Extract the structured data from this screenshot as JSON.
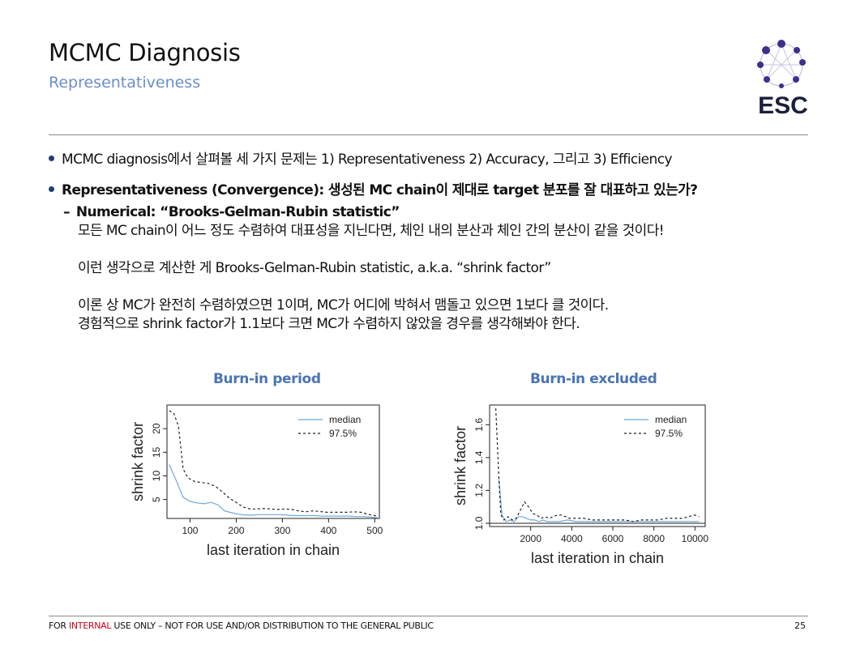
{
  "header": {
    "title": "MCMC Diagnosis",
    "subtitle": "Representativeness",
    "logo_text": "ESC"
  },
  "bullets": {
    "item1": "MCMC diagnosis에서 살펴볼 세 가지 문제는 1) Representativeness 2) Accuracy, 그리고 3) Efficiency",
    "item2": "Representativeness (Convergence): 생성된 MC chain이 제대로 target 분포를 잘 대표하고 있는가?",
    "sub_dash": "–",
    "sub_head": "Numerical: “Brooks-Gelman-Rubin statistic”",
    "sub_lines": [
      "모든 MC chain이 어느 정도 수렴하여 대표성을 지닌다면, 체인 내의 분산과 체인 간의 분산이 같을 것이다!",
      "",
      "이런 생각으로 계산한 게 Brooks-Gelman-Rubin statistic, a.k.a. “shrink factor”",
      "",
      "이론 상 MC가 완전히 수렴하였으면 1이며, MC가 어디에 박혀서 맴돌고 있으면 1보다 클 것이다.",
      "경험적으로 shrink factor가 1.1보다 크면 MC가 수렴하지 않았을 경우를 생각해봐야 한다."
    ]
  },
  "chart_data": [
    {
      "type": "line",
      "heading": "Burn-in period",
      "xlabel": "last iteration in chain",
      "ylabel": "shrink factor",
      "xlim": [
        50,
        510
      ],
      "ylim": [
        1,
        25
      ],
      "xticks": [
        100,
        200,
        300,
        400,
        500
      ],
      "yticks": [
        5,
        10,
        15,
        20
      ],
      "legend": "top-right",
      "series": [
        {
          "name": "median",
          "style": "solid",
          "color": "#6fa8dc",
          "x": [
            55,
            70,
            85,
            100,
            115,
            130,
            145,
            160,
            175,
            190,
            205,
            220,
            235,
            250,
            265,
            280,
            295,
            310,
            325,
            340,
            355,
            370,
            385,
            400,
            415,
            430,
            445,
            460,
            475,
            490,
            505
          ],
          "y": [
            12.4,
            9.0,
            5.5,
            4.6,
            4.3,
            4.1,
            4.4,
            3.9,
            2.6,
            2.2,
            1.9,
            1.7,
            1.7,
            1.8,
            1.8,
            1.8,
            1.8,
            1.7,
            1.6,
            1.6,
            1.6,
            1.6,
            1.5,
            1.5,
            1.5,
            1.5,
            1.5,
            1.4,
            1.4,
            1.3,
            1.2
          ]
        },
        {
          "name": "97.5%",
          "style": "dashed",
          "color": "#222222",
          "x": [
            55,
            65,
            75,
            85,
            95,
            110,
            125,
            140,
            155,
            170,
            185,
            200,
            215,
            230,
            245,
            260,
            275,
            290,
            305,
            320,
            335,
            350,
            365,
            380,
            395,
            410,
            425,
            440,
            455,
            470,
            485,
            500,
            505
          ],
          "y": [
            23.8,
            23.2,
            20.5,
            11.5,
            9.6,
            8.8,
            8.6,
            8.4,
            7.8,
            6.6,
            5.3,
            4.4,
            3.4,
            3.0,
            3.0,
            3.1,
            3.0,
            2.9,
            3.0,
            2.9,
            2.6,
            2.4,
            2.6,
            2.5,
            2.3,
            2.3,
            2.3,
            2.3,
            2.4,
            2.3,
            1.9,
            1.6,
            1.5
          ]
        }
      ]
    },
    {
      "type": "line",
      "heading": "Burn-in excluded",
      "xlabel": "last iteration in chain",
      "ylabel": "shrink factor",
      "xlim": [
        0,
        10500
      ],
      "ylim": [
        0.98,
        1.72
      ],
      "xticks": [
        2000,
        4000,
        6000,
        8000,
        10000
      ],
      "yticks": [
        1.0,
        1.2,
        1.4,
        1.6
      ],
      "legend": "top-right",
      "series": [
        {
          "name": "median",
          "style": "solid",
          "color": "#6fa8dc",
          "x": [
            450,
            600,
            800,
            1000,
            1200,
            1400,
            1600,
            1800,
            2000,
            2200,
            2400,
            2600,
            2800,
            3000,
            3400,
            3800,
            4200,
            4600,
            5000,
            5400,
            5800,
            6200,
            6600,
            7000,
            7400,
            7800,
            8200,
            8600,
            9000,
            9400,
            9800,
            10200
          ],
          "y": [
            1.27,
            1.05,
            1.01,
            1.02,
            1.01,
            1.04,
            1.04,
            1.03,
            1.02,
            1.02,
            1.01,
            1.02,
            1.01,
            1.01,
            1.01,
            1.02,
            1.01,
            1.01,
            1.01,
            1.01,
            1.01,
            1.01,
            1.01,
            1.01,
            1.01,
            1.01,
            1.01,
            1.01,
            1.01,
            1.01,
            1.01,
            1.01
          ]
        },
        {
          "name": "97.5%",
          "style": "dashed",
          "color": "#222222",
          "x": [
            300,
            450,
            550,
            700,
            900,
            1100,
            1300,
            1500,
            1700,
            1900,
            2100,
            2300,
            2500,
            2700,
            2900,
            3100,
            3300,
            3500,
            3700,
            3900,
            4200,
            4600,
            5000,
            5400,
            5800,
            6200,
            6600,
            7000,
            7400,
            7800,
            8200,
            8600,
            9000,
            9400,
            9700,
            10000,
            10200
          ],
          "y": [
            1.7,
            1.28,
            1.05,
            1.02,
            1.04,
            1.02,
            1.03,
            1.08,
            1.13,
            1.1,
            1.06,
            1.05,
            1.03,
            1.04,
            1.03,
            1.04,
            1.05,
            1.05,
            1.04,
            1.03,
            1.03,
            1.03,
            1.02,
            1.02,
            1.02,
            1.02,
            1.02,
            1.01,
            1.02,
            1.02,
            1.02,
            1.03,
            1.03,
            1.03,
            1.04,
            1.05,
            1.04
          ]
        }
      ]
    }
  ],
  "footer": {
    "prefix": "FOR ",
    "highlight": "INTERNAL",
    "suffix": " USE ONLY – NOT FOR USE AND/OR DISTRIBUTION TO THE GENERAL PUBLIC",
    "page": "25",
    "highlight_color": "#d0021b"
  }
}
